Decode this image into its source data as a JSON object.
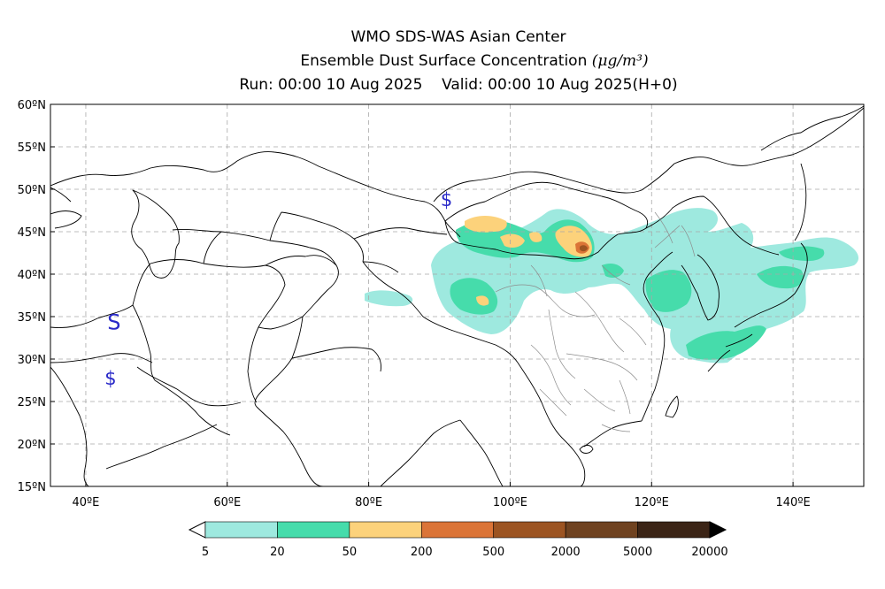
{
  "title": {
    "line1": "WMO SDS-WAS Asian Center",
    "line2_text": "Ensemble Dust Surface Concentration ",
    "line2_unit": "(μg/m³)",
    "run": "Run: 00:00 10 Aug 2025",
    "valid": "Valid: 00:00 10 Aug 2025(H+0)"
  },
  "map": {
    "lon_range": [
      35,
      150
    ],
    "lat_range": [
      15,
      60
    ],
    "lat_ticks": [
      {
        "value": 60,
        "label": "60ºN"
      },
      {
        "value": 55,
        "label": "55ºN"
      },
      {
        "value": 50,
        "label": "50ºN"
      },
      {
        "value": 45,
        "label": "45ºN"
      },
      {
        "value": 40,
        "label": "40ºN"
      },
      {
        "value": 35,
        "label": "35ºN"
      },
      {
        "value": 30,
        "label": "30ºN"
      },
      {
        "value": 25,
        "label": "25ºN"
      },
      {
        "value": 20,
        "label": "20ºN"
      },
      {
        "value": 15,
        "label": "15ºN"
      }
    ],
    "lon_ticks": [
      {
        "value": 40,
        "label": "40ºE"
      },
      {
        "value": 60,
        "label": "60ºE"
      },
      {
        "value": 80,
        "label": "80ºE"
      },
      {
        "value": 100,
        "label": "100ºE"
      },
      {
        "value": 120,
        "label": "120ºE"
      },
      {
        "value": 140,
        "label": "140ºE"
      }
    ],
    "grid": true,
    "station_symbols": [
      {
        "symbol": "$",
        "lon": 91,
        "lat": 48
      },
      {
        "symbol": "S",
        "lon": 44,
        "lat": 33.5
      },
      {
        "symbol": "$",
        "lon": 43.5,
        "lat": 27
      }
    ]
  },
  "colorbar": {
    "colors": [
      "#9ee9df",
      "#46dcab",
      "#fcd27b",
      "#db7437",
      "#9c5422",
      "#6f4220",
      "#3b2416"
    ],
    "labels": [
      "5",
      "20",
      "50",
      "200",
      "500",
      "2000",
      "5000",
      "20000"
    ],
    "under_color": "#ffffff",
    "over_color": "#000000"
  },
  "colors": {
    "coast": "#000000",
    "china_provinces": "#8c8c8c",
    "grid": "#a8a8a8",
    "symbol": "#2929c8"
  }
}
